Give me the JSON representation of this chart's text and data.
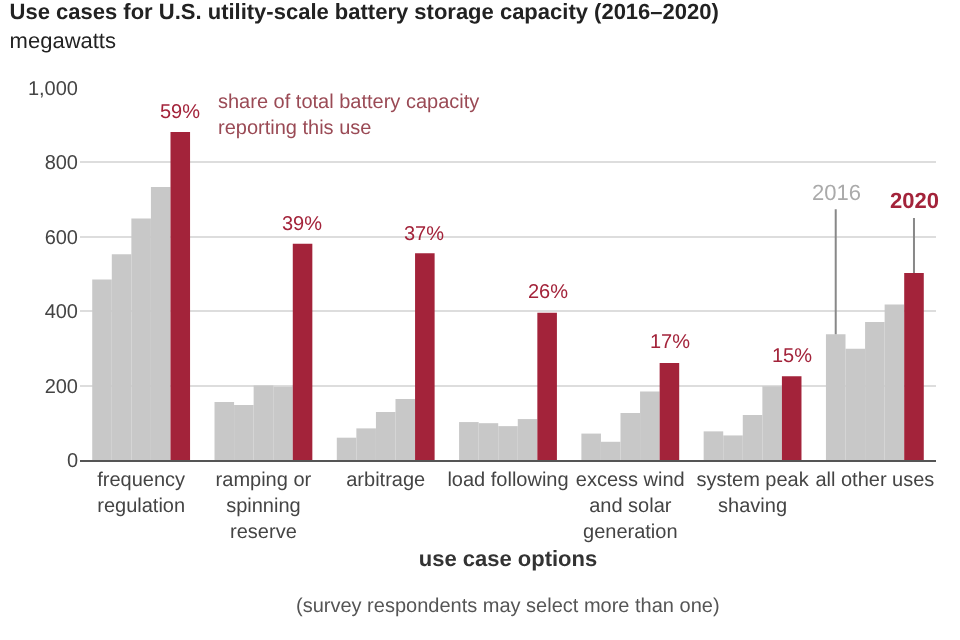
{
  "chart_data": {
    "type": "bar",
    "title": "Use cases for U.S. utility-scale battery storage capacity (2016–2020)",
    "subtitle": "megawatts",
    "xlabel": "use case options",
    "categories": [
      "frequency regulation",
      "ramping or spinning reserve",
      "arbitrage",
      "load following",
      "excess wind and solar generation",
      "system peak shaving",
      "all other uses"
    ],
    "series": [
      {
        "name": "2016",
        "color": "#c8c8c8",
        "values": [
          485,
          156,
          60,
          102,
          71,
          77,
          338
        ]
      },
      {
        "color": "#c8c8c8",
        "values": [
          553,
          148,
          85,
          99,
          49,
          66,
          299
        ]
      },
      {
        "color": "#c8c8c8",
        "values": [
          649,
          200,
          129,
          91,
          126,
          121,
          371
        ]
      },
      {
        "color": "#c8c8c8",
        "values": [
          734,
          197,
          164,
          110,
          184,
          198,
          418
        ]
      },
      {
        "name": "2020",
        "color": "#a3233a",
        "values": [
          882,
          581,
          556,
          396,
          261,
          225,
          503
        ]
      }
    ],
    "annotations": [
      "share of total battery capacity reporting this use",
      "(survey respondents may select more than one)",
      "59%",
      "39%",
      "37%",
      "26%",
      "17%",
      "15%"
    ],
    "ylim": [
      0,
      1000
    ],
    "yticks": [
      0,
      200,
      400,
      600,
      800,
      {
        "value": 1000,
        "label": "1,000"
      }
    ],
    "grid": "y",
    "legend": false
  }
}
